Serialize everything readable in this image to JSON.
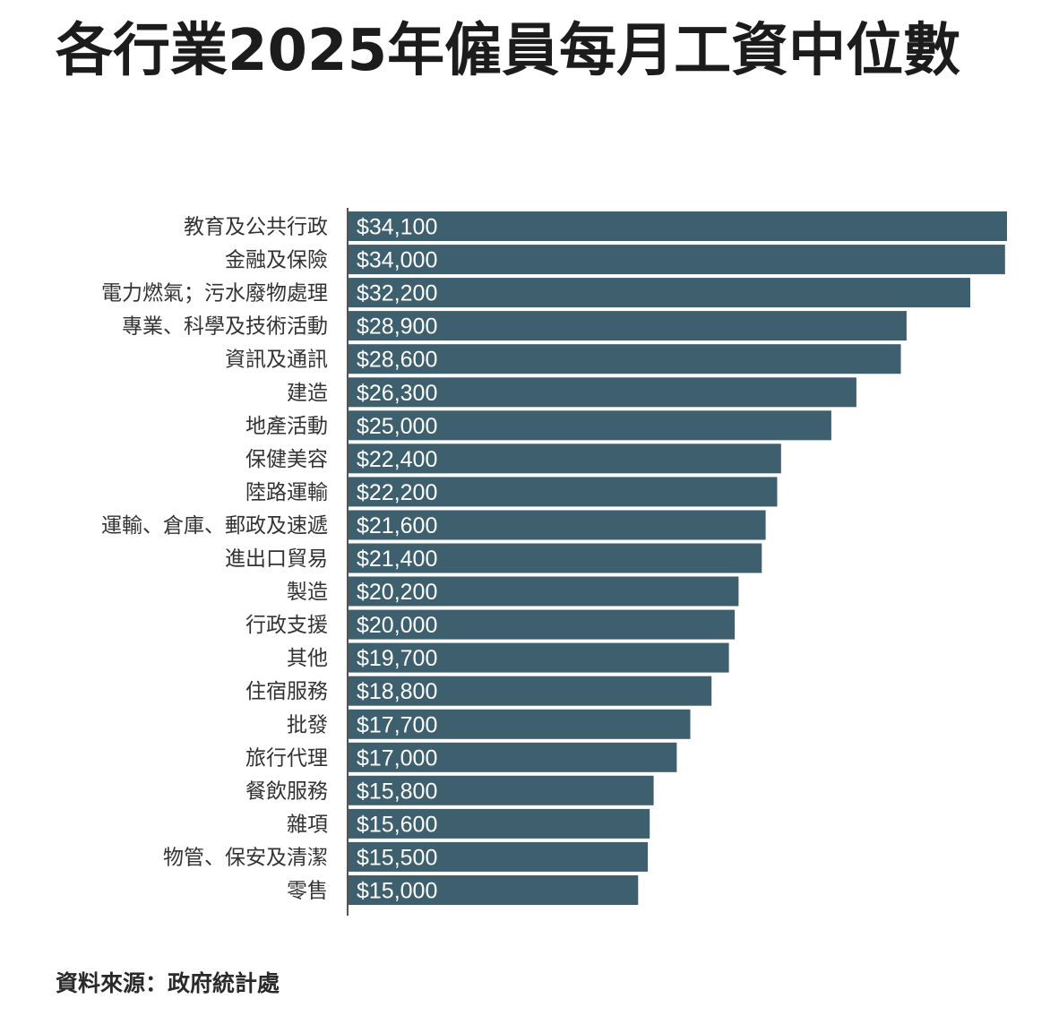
{
  "chart_data": {
    "type": "bar",
    "orientation": "horizontal",
    "title": "各行業2025年僱員每月工資中位數",
    "categories": [
      "教育及公共行政",
      "金融及保險",
      "電力燃氣；污水廢物處理",
      "專業、科學及技術活動",
      "資訊及通訊",
      "建造",
      "地產活動",
      "保健美容",
      "陸路運輸",
      "運輸、倉庫、郵政及速遞",
      "進出口貿易",
      "製造",
      "行政支援",
      "其他",
      "住宿服務",
      "批發",
      "旅行代理",
      "餐飲服務",
      "雜項",
      "物管、保安及清潔",
      "零售"
    ],
    "values": [
      34100,
      34000,
      32200,
      28900,
      28600,
      26300,
      25000,
      22400,
      22200,
      21600,
      21400,
      20200,
      20000,
      19700,
      18800,
      17700,
      17000,
      15800,
      15600,
      15500,
      15000
    ],
    "value_labels": [
      "$34,100",
      "$34,000",
      "$32,200",
      "$28,900",
      "$28,600",
      "$26,300",
      "$25,000",
      "$22,400",
      "$22,200",
      "$21,600",
      "$21,400",
      "$20,200",
      "$20,000",
      "$19,700",
      "$18,800",
      "$17,700",
      "$17,000",
      "$15,800",
      "$15,600",
      "$15,500",
      "$15,000"
    ],
    "xlim": [
      0,
      34100
    ],
    "xlabel": "",
    "ylabel": "",
    "grid": false,
    "bar_color": "#3d5f6e",
    "source": "資料來源：政府統計處"
  }
}
